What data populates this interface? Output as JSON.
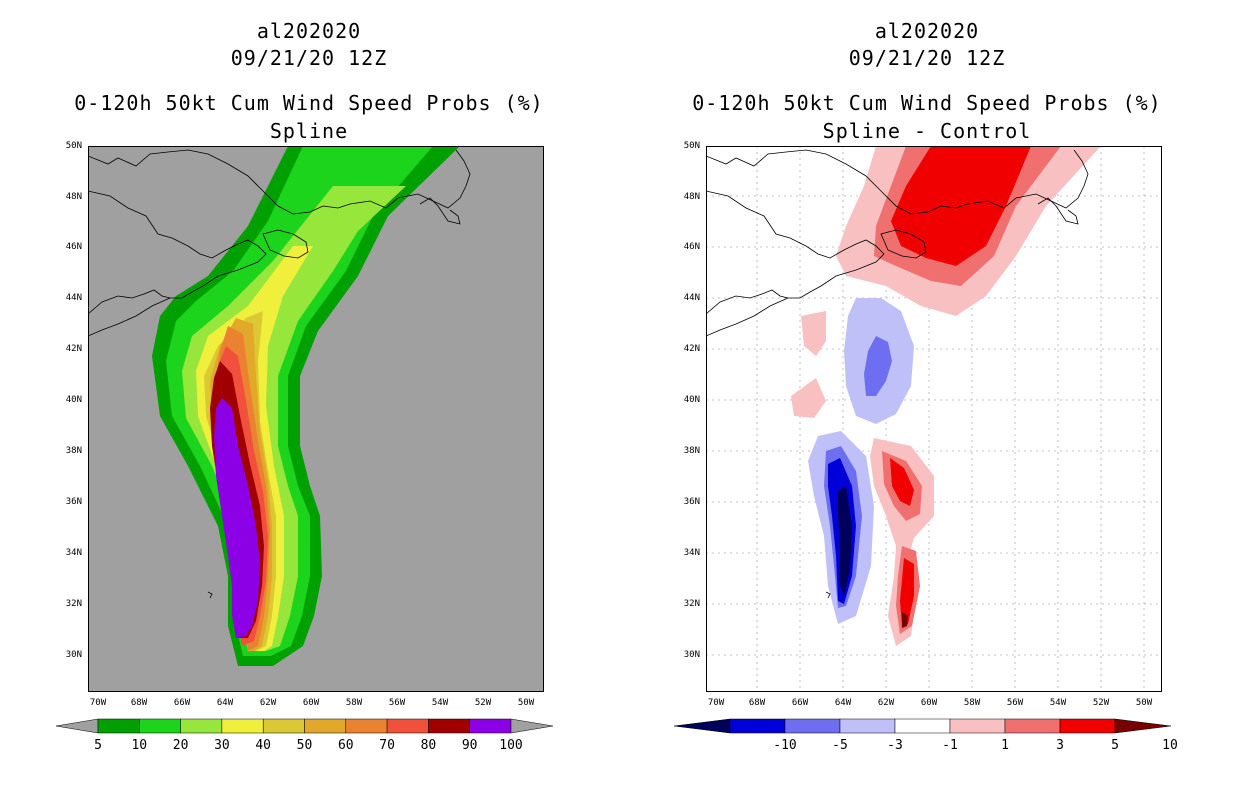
{
  "left_panel": {
    "title_storm": "al202020",
    "title_date": "09/21/20 12Z",
    "title_product": "0-120h 50kt Cum Wind Speed Probs (%)",
    "title_run": "Spline",
    "lat_labels": [
      "50N",
      "48N",
      "46N",
      "44N",
      "42N",
      "40N",
      "38N",
      "36N",
      "34N",
      "32N",
      "30N"
    ],
    "lon_labels": [
      "70W",
      "68W",
      "66W",
      "64W",
      "62W",
      "60W",
      "58W",
      "56W",
      "54W",
      "52W",
      "50W"
    ],
    "colorbar": {
      "levels": [
        "5",
        "10",
        "20",
        "30",
        "40",
        "50",
        "60",
        "70",
        "80",
        "90",
        "100"
      ],
      "colors": [
        "#00a000",
        "#1dd41d",
        "#96e63c",
        "#f0f03c",
        "#dcc832",
        "#e1a82a",
        "#eb8232",
        "#f0503c",
        "#a00000",
        "#8c00e6"
      ],
      "end_color": "#a0a0a0"
    },
    "background_color": "#a0a0a0"
  },
  "right_panel": {
    "title_storm": "al202020",
    "title_date": "09/21/20 12Z",
    "title_product": "0-120h 50kt Cum Wind Speed Probs (%)",
    "title_run": "Spline - Control",
    "lat_labels": [
      "50N",
      "48N",
      "46N",
      "44N",
      "42N",
      "40N",
      "38N",
      "36N",
      "34N",
      "32N",
      "30N"
    ],
    "lon_labels": [
      "70W",
      "68W",
      "66W",
      "64W",
      "62W",
      "60W",
      "58W",
      "56W",
      "54W",
      "52W",
      "50W"
    ],
    "colorbar": {
      "levels": [
        "-10",
        "-5",
        "-3",
        "-1",
        "1",
        "3",
        "5",
        "10"
      ],
      "colors": [
        "#0000d8",
        "#6e6ef0",
        "#c0c0f8",
        "#ffffff",
        "#f8c0c0",
        "#f07070",
        "#f00000"
      ],
      "neg_end_color": "#00005a",
      "pos_end_color": "#780000"
    },
    "background_color": "#ffffff"
  }
}
